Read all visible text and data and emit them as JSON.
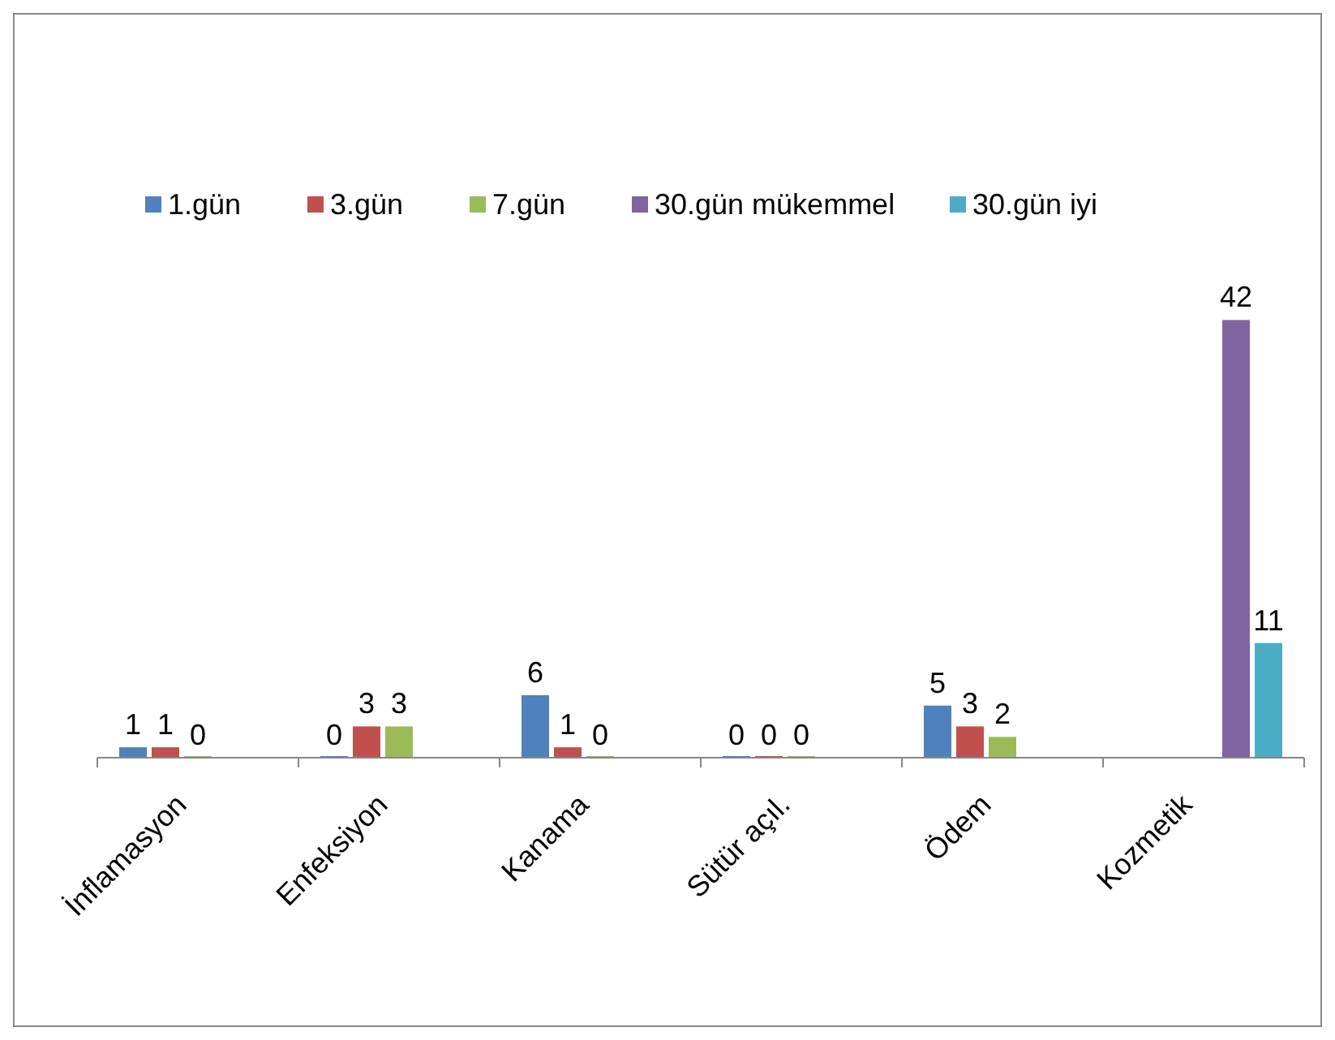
{
  "chart_data": {
    "type": "bar",
    "categories": [
      "İnflamasyon",
      "Enfeksiyon",
      "Kanama",
      "Sütür açıl.",
      "Ödem",
      "Kozmetik"
    ],
    "series": [
      {
        "name": "1.gün",
        "color": "#4f81bd",
        "values": [
          1,
          0,
          6,
          0,
          5,
          null
        ]
      },
      {
        "name": "3.gün",
        "color": "#c0504d",
        "values": [
          1,
          3,
          1,
          0,
          3,
          null
        ]
      },
      {
        "name": "7.gün",
        "color": "#9bbb59",
        "values": [
          0,
          3,
          0,
          0,
          2,
          null
        ]
      },
      {
        "name": "30.gün mükemmel",
        "color": "#8064a2",
        "values": [
          null,
          null,
          null,
          null,
          null,
          42
        ]
      },
      {
        "name": "30.gün iyi",
        "color": "#4bacc6",
        "values": [
          null,
          null,
          null,
          null,
          null,
          11
        ]
      }
    ],
    "data_labels": true,
    "legend": "top"
  }
}
